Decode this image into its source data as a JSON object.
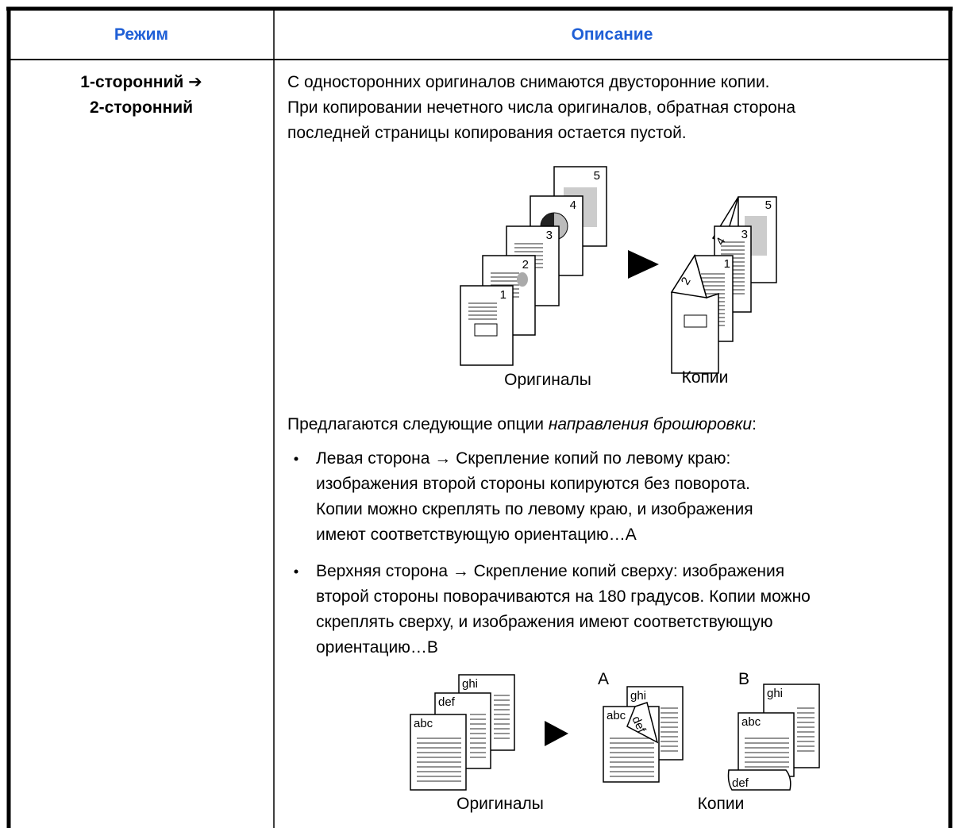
{
  "table": {
    "header": [
      "Режим",
      "Описание"
    ],
    "row": {
      "mode": [
        "1-сторонний ➔",
        "2-сторонний"
      ],
      "description": {
        "paragraph": [
          "С односторонних оригиналов снимаются двусторонние копии.",
          "При копировании нечетного числа оригиналов, обратная сторона",
          "последней страницы копирования остается пустой."
        ],
        "figure1": {
          "page_numbers": [
            "1",
            "2",
            "3",
            "4",
            "5"
          ],
          "originals_label": "Оригиналы",
          "copies_label": "Копии"
        },
        "intro": {
          "before": "Предлагаются следующие опции ",
          "italic": "направления брошюровки",
          "after": ":"
        },
        "bullets": [
          [
            "Левая сторона → Скрепление копий по левому краю:",
            "изображения второй стороны копируются без поворота.",
            "Копии можно скреплять по левому краю, и изображения",
            "имеют соответствующую ориентацию…A"
          ],
          [
            "Верхняя сторона → Скрепление копий сверху: изображения",
            "второй стороны поворачиваются на 180 градусов. Копии можно",
            "скреплять сверху, и изображения имеют соответствующую",
            "ориентацию…B"
          ]
        ],
        "figure2": {
          "page_texts": [
            "abc",
            "def",
            "ghi"
          ],
          "variant_a": "A",
          "variant_b": "B",
          "originals_label": "Оригиналы",
          "copies_label": "Копии"
        }
      }
    }
  }
}
